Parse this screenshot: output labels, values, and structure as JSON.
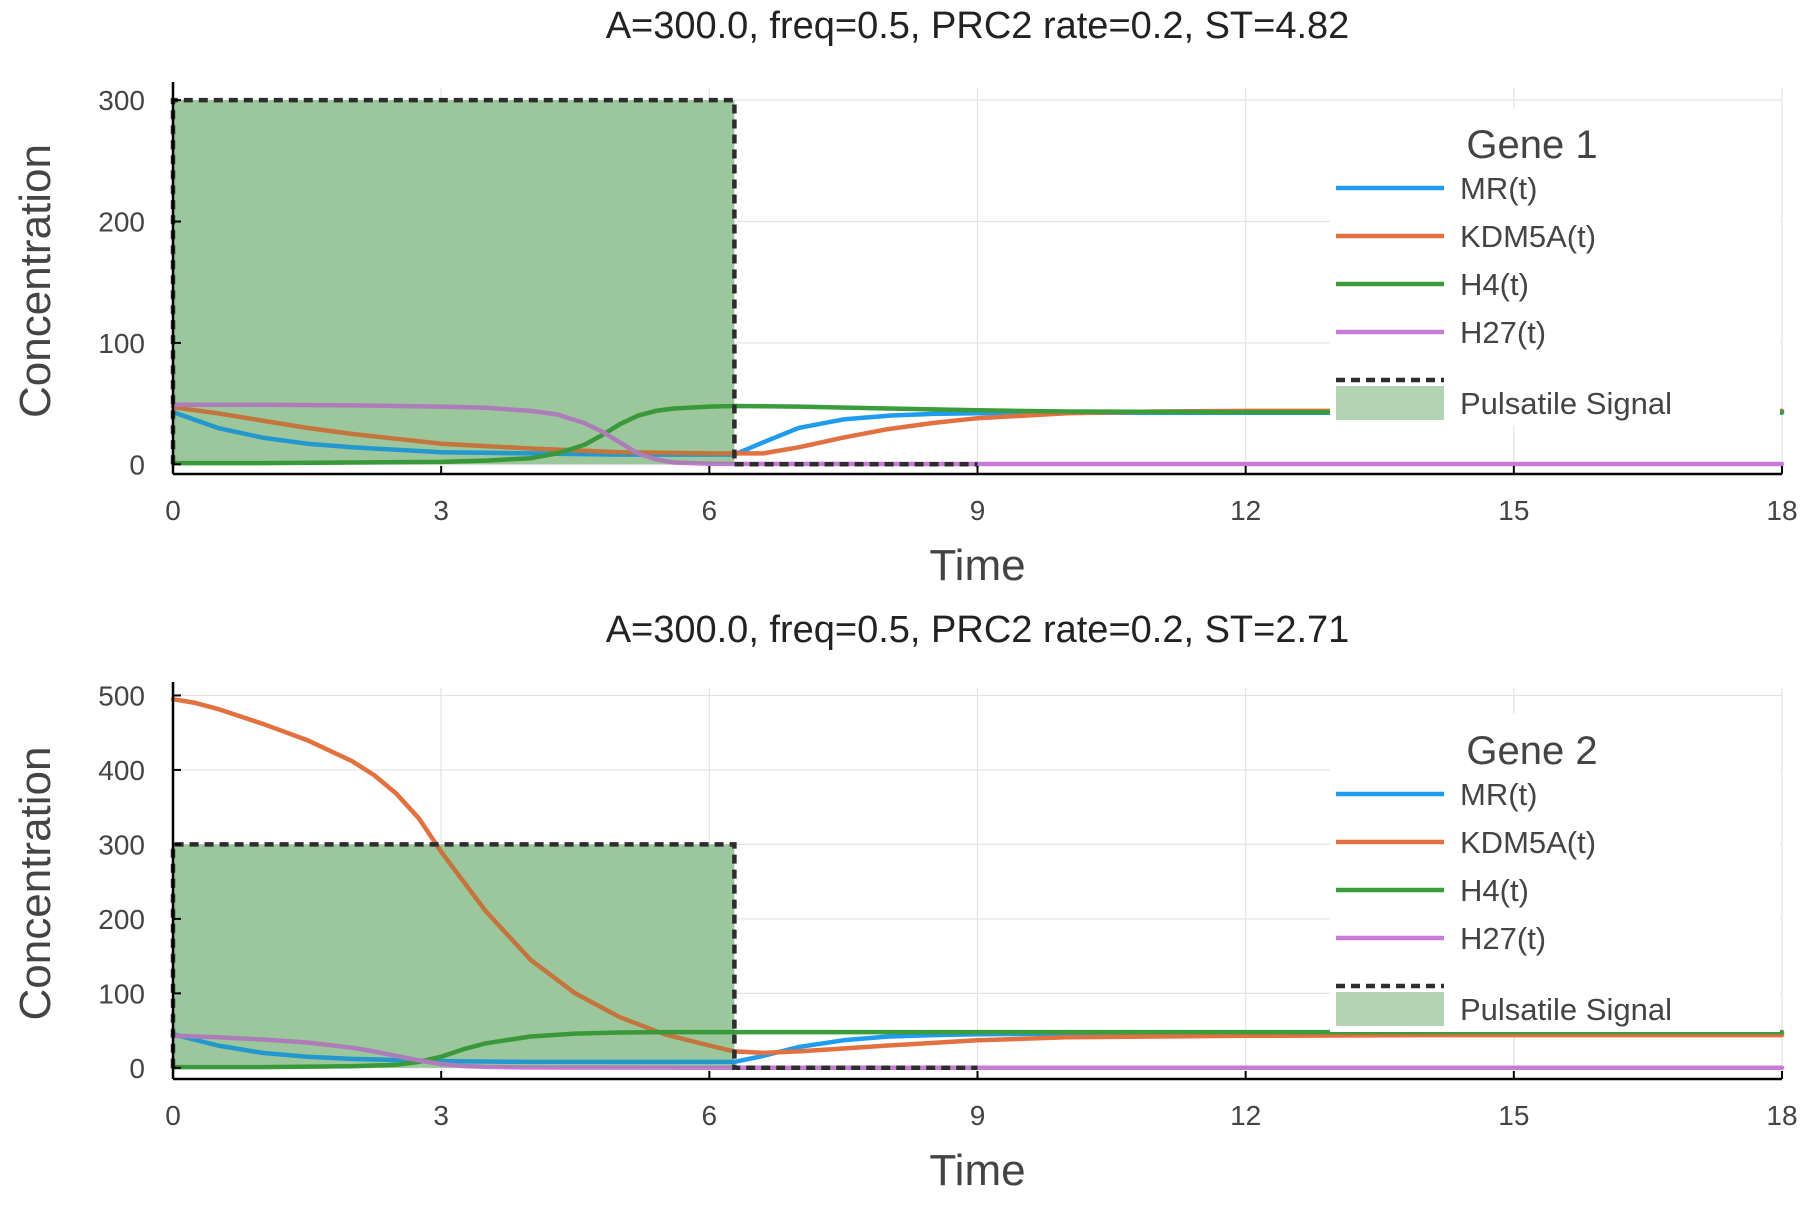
{
  "chart_data": [
    {
      "type": "line",
      "title": "A=300.0, freq=0.5, PRC2 rate=0.2,  ST=4.82",
      "xlabel": "Time",
      "ylabel": "Concentration",
      "xlim": [
        0,
        18
      ],
      "ylim": [
        -8,
        310
      ],
      "xticks": [
        0,
        3,
        6,
        9,
        12,
        15,
        18
      ],
      "xtick_labels": [
        "0",
        "3",
        "6",
        "9",
        "12",
        "15",
        "18"
      ],
      "yticks": [
        0,
        100,
        200,
        300
      ],
      "ytick_labels": [
        "0",
        "100",
        "200",
        "300"
      ],
      "grid": true,
      "legend": {
        "title": "Gene 1",
        "placement": "top-right"
      },
      "colors": {
        "MR(t)": "#1f9cef",
        "KDM5A(t)": "#e3703f",
        "H4(t)": "#3a9c3a",
        "H27(t)": "#c77bd6",
        "Pulsatile Signal": "#2d2d2d",
        "fill": "#b3d4b3"
      },
      "signal": {
        "name": "Pulsatile Signal",
        "x": [
          0,
          0,
          6.28,
          6.28,
          9
        ],
        "y": [
          0,
          300,
          300,
          0,
          0
        ],
        "fill_range": [
          0,
          6.28
        ],
        "fill_value": 300
      },
      "series": [
        {
          "name": "MR(t)",
          "x": [
            0,
            0.5,
            1,
            1.5,
            2,
            3,
            4,
            5,
            6,
            6.28,
            6.6,
            7,
            7.5,
            8,
            8.5,
            9,
            10,
            11,
            12,
            14,
            16,
            18
          ],
          "y": [
            43,
            30,
            22,
            17,
            14,
            10,
            9,
            8,
            8,
            8,
            18,
            30,
            37,
            40,
            41.5,
            42,
            42.5,
            42.5,
            42.5,
            42.5,
            42.5,
            42.5
          ]
        },
        {
          "name": "KDM5A(t)",
          "x": [
            0,
            0.5,
            1,
            1.5,
            2,
            3,
            4,
            5,
            6,
            6.28,
            6.6,
            7,
            7.5,
            8,
            8.5,
            9,
            10,
            11,
            12,
            14,
            16,
            18
          ],
          "y": [
            47,
            42,
            36,
            30,
            25,
            17,
            13,
            10,
            9,
            9,
            9,
            14,
            22,
            29,
            34,
            38,
            42,
            43.5,
            44,
            44,
            44,
            44
          ]
        },
        {
          "name": "H4(t)",
          "x": [
            0,
            1,
            2,
            3,
            3.5,
            4,
            4.3,
            4.6,
            4.8,
            5,
            5.2,
            5.4,
            5.6,
            6,
            6.28,
            7,
            8,
            9,
            10,
            12,
            14,
            16,
            18
          ],
          "y": [
            1,
            1,
            1.5,
            2,
            3,
            5,
            9,
            16,
            24,
            33,
            40,
            44,
            46,
            47.5,
            48,
            47.5,
            46,
            44.5,
            43.5,
            43,
            43,
            43,
            43
          ]
        },
        {
          "name": "H27(t)",
          "x": [
            0,
            1,
            2,
            3,
            3.5,
            4,
            4.3,
            4.6,
            4.8,
            5,
            5.2,
            5.4,
            5.6,
            6,
            6.28,
            9,
            12,
            15,
            18
          ],
          "y": [
            49,
            49,
            48.5,
            47.5,
            46.5,
            44,
            41,
            34,
            27,
            18,
            9,
            4,
            1.5,
            0.5,
            0.3,
            0.2,
            0.2,
            0.2,
            0.2
          ]
        }
      ],
      "legend_entries": [
        "MR(t)",
        "KDM5A(t)",
        "H4(t)",
        "H27(t)",
        "Pulsatile Signal"
      ]
    },
    {
      "type": "line",
      "title": "A=300.0, freq=0.5, PRC2 rate=0.2,  ST=2.71",
      "xlabel": "Time",
      "ylabel": "Concentration",
      "xlim": [
        0,
        18
      ],
      "ylim": [
        -15,
        510
      ],
      "xticks": [
        0,
        3,
        6,
        9,
        12,
        15,
        18
      ],
      "xtick_labels": [
        "0",
        "3",
        "6",
        "9",
        "12",
        "15",
        "18"
      ],
      "yticks": [
        0,
        100,
        200,
        300,
        400,
        500
      ],
      "ytick_labels": [
        "0",
        "100",
        "200",
        "300",
        "400",
        "500"
      ],
      "grid": true,
      "legend": {
        "title": "Gene 2",
        "placement": "top-right"
      },
      "colors": {
        "MR(t)": "#1f9cef",
        "KDM5A(t)": "#e3703f",
        "H4(t)": "#3a9c3a",
        "H27(t)": "#c77bd6",
        "Pulsatile Signal": "#2d2d2d",
        "fill": "#b3d4b3"
      },
      "signal": {
        "name": "Pulsatile Signal",
        "x": [
          0,
          0,
          6.28,
          6.28,
          9
        ],
        "y": [
          0,
          300,
          300,
          0,
          0
        ],
        "fill_range": [
          0,
          6.28
        ],
        "fill_value": 300
      },
      "series": [
        {
          "name": "MR(t)",
          "x": [
            0,
            0.5,
            1,
            1.5,
            2,
            3,
            4,
            5,
            6,
            6.28,
            6.6,
            7,
            7.5,
            8,
            8.5,
            9,
            10,
            12,
            14,
            16,
            18
          ],
          "y": [
            45,
            30,
            20,
            15,
            12,
            9,
            8,
            8,
            8,
            8,
            16,
            28,
            37,
            42,
            44,
            45,
            46,
            46,
            46,
            46,
            46
          ]
        },
        {
          "name": "KDM5A(t)",
          "x": [
            0,
            0.25,
            0.5,
            1,
            1.5,
            2,
            2.25,
            2.5,
            2.75,
            3,
            3.5,
            4,
            4.5,
            5,
            5.5,
            6,
            6.28,
            6.6,
            7,
            7.5,
            8,
            9,
            10,
            12,
            14,
            16,
            18
          ],
          "y": [
            495,
            490,
            482,
            462,
            440,
            412,
            393,
            368,
            335,
            290,
            210,
            145,
            100,
            68,
            45,
            30,
            22,
            20,
            22,
            26,
            30,
            37,
            41,
            43,
            44,
            44,
            44
          ]
        },
        {
          "name": "H4(t)",
          "x": [
            0,
            1,
            2,
            2.5,
            2.75,
            3,
            3.25,
            3.5,
            4,
            4.5,
            5,
            5.5,
            6,
            7,
            9,
            12,
            15,
            18
          ],
          "y": [
            1,
            1,
            2,
            4,
            8,
            15,
            25,
            33,
            42,
            46,
            47.5,
            48,
            48,
            48,
            48,
            48,
            48,
            48
          ]
        },
        {
          "name": "H27(t)",
          "x": [
            0,
            0.5,
            1,
            1.5,
            2,
            2.25,
            2.5,
            2.75,
            3,
            3.25,
            3.5,
            4,
            5,
            6,
            9,
            12,
            15,
            18
          ],
          "y": [
            43,
            41,
            38,
            34,
            27,
            22,
            16,
            10,
            5,
            2.5,
            1.2,
            0.5,
            0.3,
            0.2,
            0.2,
            0.2,
            0.2,
            0.2
          ]
        }
      ],
      "legend_entries": [
        "MR(t)",
        "KDM5A(t)",
        "H4(t)",
        "H27(t)",
        "Pulsatile Signal"
      ]
    }
  ]
}
